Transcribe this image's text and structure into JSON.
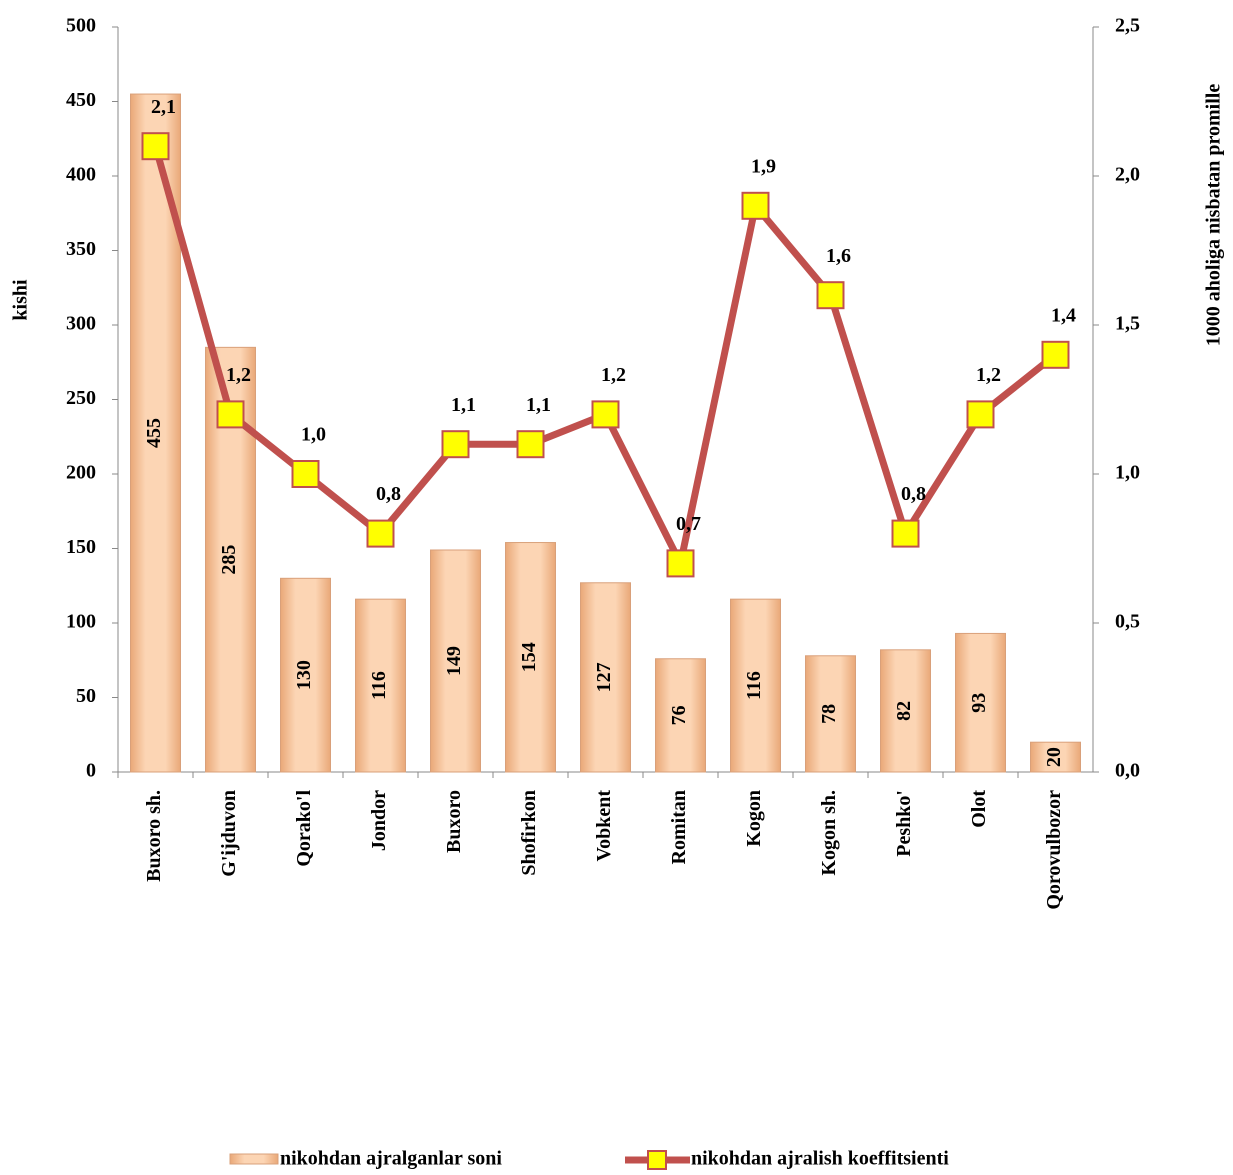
{
  "chart_data": {
    "type": "bar",
    "categories": [
      "Buxoro sh.",
      "G'ijduvon",
      "Qorako'l",
      "Jondor",
      "Buxoro",
      "Shofirkon",
      "Vobkent",
      "Romitan",
      "Kogon",
      "Kogon sh.",
      "Peshko'",
      "Olot",
      "Qorovulbozor"
    ],
    "series": [
      {
        "name": "nikohdan ajralganlar soni",
        "type": "bar",
        "color": "#fbc797",
        "values": [
          455,
          285,
          130,
          116,
          149,
          154,
          127,
          76,
          116,
          78,
          82,
          93,
          20
        ]
      },
      {
        "name": "nikohdan ajralish koeffitsienti",
        "type": "line",
        "axis": "y2",
        "color": "#c0504d",
        "marker_color": "#ffff00",
        "values": [
          2.1,
          1.2,
          1.0,
          0.8,
          1.1,
          1.1,
          1.2,
          0.7,
          1.9,
          1.6,
          0.8,
          1.2,
          1.4
        ],
        "value_labels": [
          "2,1",
          "1,2",
          "1,0",
          "0,8",
          "1,1",
          "1,1",
          "1,2",
          "0,7",
          "1,9",
          "1,6",
          "0,8",
          "1,2",
          "1,4"
        ]
      }
    ],
    "ylabel": "kishi",
    "y2label": "1000 aholiga nisbatan promille",
    "ylim": [
      0,
      500
    ],
    "yticks": [
      0,
      50,
      100,
      150,
      200,
      250,
      300,
      350,
      400,
      450,
      500
    ],
    "y2lim": [
      0,
      2.5
    ],
    "y2ticks": [
      {
        "value": 0,
        "label": "0,0"
      },
      {
        "value": 0.5,
        "label": "0,5"
      },
      {
        "value": 1,
        "label": "1,0"
      },
      {
        "value": 1.5,
        "label": "1,5"
      },
      {
        "value": 2,
        "label": "2,0"
      },
      {
        "value": 2.5,
        "label": "2,5"
      }
    ],
    "legend": "bottom"
  }
}
